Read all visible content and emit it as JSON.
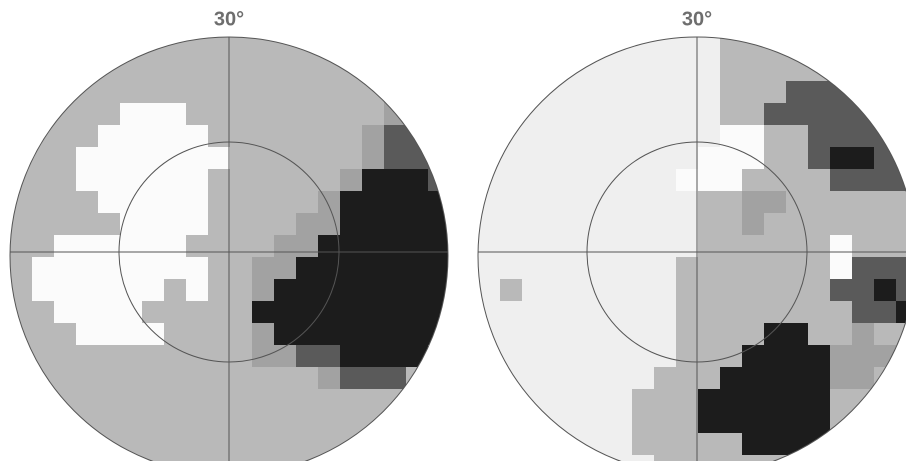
{
  "fields": [
    {
      "label": "30°"
    },
    {
      "label": "30°"
    }
  ]
}
